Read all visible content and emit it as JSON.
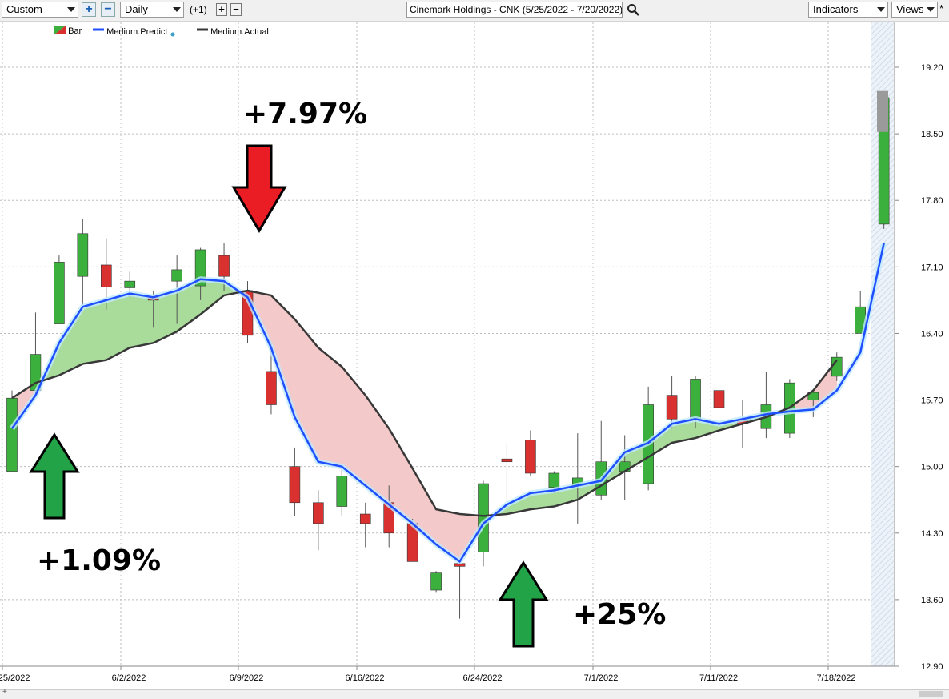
{
  "toolbar": {
    "period_select": "Custom",
    "add_icon": "plus-icon",
    "remove_icon": "minus-icon",
    "interval_select": "Daily",
    "offset_label": "(+1)",
    "symbol_field": "Cinemark Holdings - CNK (5/25/2022 - 7/20/2022)",
    "indicators_select": "Indicators",
    "views_select": "Views",
    "views_marker": "*"
  },
  "legend": {
    "bar_label": "Bar",
    "predict_label": "Medium.Predict",
    "actual_label": "Medium.Actual"
  },
  "colors": {
    "up": "#3cb03c",
    "down": "#d93030",
    "predict": "#1f4fff",
    "actual": "#383838",
    "fill_green": "#a9dc9a",
    "fill_red": "#f4c9c9"
  },
  "chart_data": {
    "type": "candlestick",
    "title": "Cinemark Holdings - CNK (5/25/2022 - 7/20/2022)",
    "ylim": [
      12.9,
      19.5
    ],
    "y_ticks": [
      "19.20",
      "18.50",
      "17.80",
      "17.10",
      "16.40",
      "15.70",
      "15.00",
      "14.30",
      "13.60",
      "12.90"
    ],
    "x_ticks": [
      "5/25/2022",
      "6/2/2022",
      "6/9/2022",
      "6/16/2022",
      "6/24/2022",
      "7/1/2022",
      "7/11/2022",
      "7/18/2022"
    ],
    "x_tick_index": [
      0,
      5,
      10,
      15,
      20,
      25,
      30,
      35
    ],
    "candles": [
      {
        "o": 14.95,
        "h": 15.8,
        "l": 14.95,
        "c": 15.72
      },
      {
        "o": 15.8,
        "h": 16.62,
        "l": 15.75,
        "c": 16.18
      },
      {
        "o": 16.5,
        "h": 17.22,
        "l": 16.5,
        "c": 17.15
      },
      {
        "o": 17.0,
        "h": 17.6,
        "l": 16.7,
        "c": 17.45
      },
      {
        "o": 17.12,
        "h": 17.4,
        "l": 16.65,
        "c": 16.89
      },
      {
        "o": 16.88,
        "h": 17.05,
        "l": 16.78,
        "c": 16.95
      },
      {
        "o": 16.78,
        "h": 16.85,
        "l": 16.46,
        "c": 16.75
      },
      {
        "o": 16.95,
        "h": 17.22,
        "l": 16.5,
        "c": 17.07
      },
      {
        "o": 16.9,
        "h": 17.3,
        "l": 16.75,
        "c": 17.28
      },
      {
        "o": 17.22,
        "h": 17.35,
        "l": 16.85,
        "c": 17.0
      },
      {
        "o": 16.85,
        "h": 16.95,
        "l": 16.3,
        "c": 16.38
      },
      {
        "o": 16.0,
        "h": 16.3,
        "l": 15.55,
        "c": 15.65
      },
      {
        "o": 15.0,
        "h": 15.2,
        "l": 14.48,
        "c": 14.62
      },
      {
        "o": 14.62,
        "h": 14.75,
        "l": 14.12,
        "c": 14.4
      },
      {
        "o": 14.58,
        "h": 15.0,
        "l": 14.48,
        "c": 14.9
      },
      {
        "o": 14.5,
        "h": 14.62,
        "l": 14.15,
        "c": 14.4
      },
      {
        "o": 14.62,
        "h": 14.8,
        "l": 14.15,
        "c": 14.3
      },
      {
        "o": 14.4,
        "h": 14.45,
        "l": 14.0,
        "c": 14.0
      },
      {
        "o": 13.7,
        "h": 13.9,
        "l": 13.68,
        "c": 13.88
      },
      {
        "o": 13.98,
        "h": 14.0,
        "l": 13.4,
        "c": 13.95
      },
      {
        "o": 14.1,
        "h": 14.85,
        "l": 13.95,
        "c": 14.82
      },
      {
        "o": 15.08,
        "h": 15.25,
        "l": 14.6,
        "c": 15.05
      },
      {
        "o": 15.28,
        "h": 15.38,
        "l": 14.9,
        "c": 14.93
      },
      {
        "o": 14.78,
        "h": 14.95,
        "l": 14.72,
        "c": 14.93
      },
      {
        "o": 14.8,
        "h": 15.35,
        "l": 14.4,
        "c": 14.88
      },
      {
        "o": 14.7,
        "h": 15.48,
        "l": 14.65,
        "c": 15.05
      },
      {
        "o": 14.95,
        "h": 15.33,
        "l": 14.65,
        "c": 15.05
      },
      {
        "o": 14.82,
        "h": 15.84,
        "l": 14.75,
        "c": 15.65
      },
      {
        "o": 15.75,
        "h": 15.95,
        "l": 15.4,
        "c": 15.5
      },
      {
        "o": 15.5,
        "h": 15.95,
        "l": 15.4,
        "c": 15.92
      },
      {
        "o": 15.8,
        "h": 15.95,
        "l": 15.55,
        "c": 15.62
      },
      {
        "o": 15.48,
        "h": 15.7,
        "l": 15.2,
        "c": 15.45
      },
      {
        "o": 15.4,
        "h": 16.0,
        "l": 15.3,
        "c": 15.65
      },
      {
        "o": 15.35,
        "h": 15.92,
        "l": 15.3,
        "c": 15.88
      },
      {
        "o": 15.7,
        "h": 15.78,
        "l": 15.52,
        "c": 15.78
      },
      {
        "o": 15.95,
        "h": 16.2,
        "l": 15.9,
        "c": 16.15
      },
      {
        "o": 16.4,
        "h": 16.85,
        "l": 16.4,
        "c": 16.68
      },
      {
        "o": 17.55,
        "h": 18.9,
        "l": 17.5,
        "c": 18.88
      }
    ],
    "projection_bar": {
      "low": 18.52,
      "high": 18.95
    },
    "series": [
      {
        "name": "Medium.Predict",
        "values": [
          15.4,
          15.75,
          16.3,
          16.68,
          16.75,
          16.82,
          16.78,
          16.85,
          16.97,
          16.95,
          16.78,
          16.25,
          15.52,
          15.05,
          15.0,
          14.8,
          14.6,
          14.4,
          14.18,
          14.0,
          14.4,
          14.6,
          14.72,
          14.75,
          14.8,
          14.85,
          15.15,
          15.25,
          15.45,
          15.5,
          15.45,
          15.5,
          15.55,
          15.58,
          15.6,
          15.8,
          16.2,
          17.35
        ]
      },
      {
        "name": "Medium.Actual",
        "values": [
          15.72,
          15.88,
          15.96,
          16.08,
          16.12,
          16.25,
          16.3,
          16.42,
          16.6,
          16.8,
          16.85,
          16.8,
          16.55,
          16.25,
          16.05,
          15.75,
          15.4,
          14.98,
          14.55,
          14.5,
          14.48,
          14.5,
          14.55,
          14.58,
          14.65,
          14.8,
          14.95,
          15.1,
          15.25,
          15.3,
          15.38,
          15.45,
          15.52,
          15.62,
          15.8,
          16.12
        ]
      }
    ],
    "annotations": [
      {
        "label": "+1.09%",
        "direction": "up",
        "index": 2
      },
      {
        "label": "+7.97%",
        "direction": "down",
        "index": 11
      },
      {
        "label": "+25%",
        "direction": "up",
        "index": 22
      }
    ]
  }
}
